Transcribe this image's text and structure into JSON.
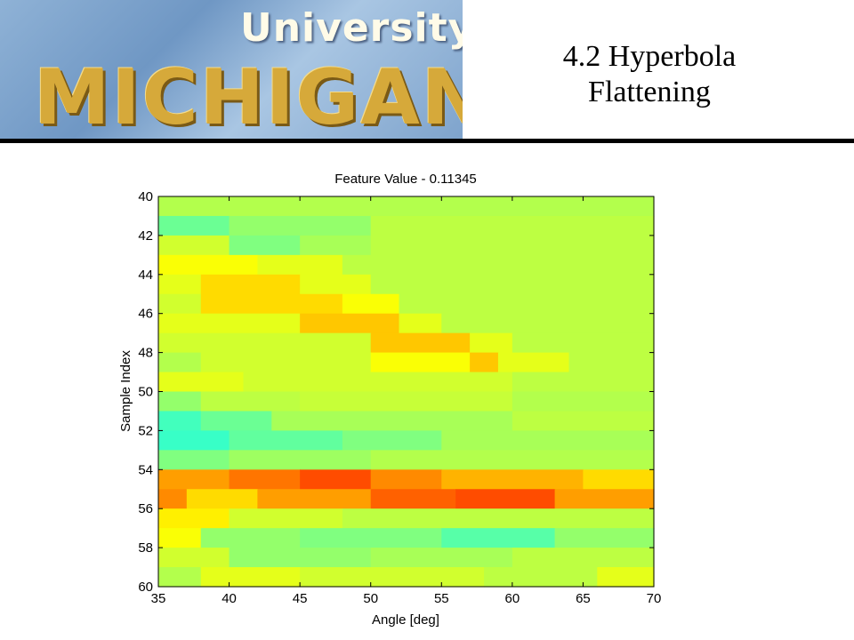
{
  "slide": {
    "logo_top": "University of",
    "logo_main": "MICHIGAN",
    "title_line1": "4.2 Hyperbola",
    "title_line2": "Flattening",
    "title_color": "#000000"
  },
  "chart_data": {
    "type": "heatmap",
    "title": "Feature Value - 0.11345",
    "xlabel": "Angle [deg]",
    "ylabel": "Sample Index",
    "xlim": [
      35,
      70
    ],
    "ylim": [
      40,
      60
    ],
    "y_inverted": true,
    "xticks": [
      35,
      40,
      45,
      50,
      55,
      60,
      65,
      70
    ],
    "yticks": [
      40,
      42,
      44,
      46,
      48,
      50,
      52,
      54,
      56,
      58,
      60
    ],
    "grid": false,
    "colormap": "jet",
    "colors": {
      "teal": "#66ffaa",
      "green": "#99ff66",
      "lime": "#ccff33",
      "yellow": "#ffff00",
      "gold": "#ffcc00",
      "orange": "#ff9900"
    },
    "rows": [
      {
        "y0": 40,
        "y1": 41,
        "segments": [
          {
            "x0": 35,
            "x1": 70,
            "v": 0.55
          }
        ]
      },
      {
        "y0": 41,
        "y1": 42,
        "segments": [
          {
            "x0": 35,
            "x1": 40,
            "v": 0.48
          },
          {
            "x0": 40,
            "x1": 50,
            "v": 0.52
          },
          {
            "x0": 50,
            "x1": 70,
            "v": 0.56
          }
        ]
      },
      {
        "y0": 42,
        "y1": 43,
        "segments": [
          {
            "x0": 35,
            "x1": 40,
            "v": 0.58
          },
          {
            "x0": 40,
            "x1": 45,
            "v": 0.5
          },
          {
            "x0": 45,
            "x1": 50,
            "v": 0.54
          },
          {
            "x0": 50,
            "x1": 70,
            "v": 0.56
          }
        ]
      },
      {
        "y0": 43,
        "y1": 44,
        "segments": [
          {
            "x0": 35,
            "x1": 42,
            "v": 0.62
          },
          {
            "x0": 42,
            "x1": 48,
            "v": 0.6
          },
          {
            "x0": 48,
            "x1": 70,
            "v": 0.56
          }
        ]
      },
      {
        "y0": 44,
        "y1": 45,
        "segments": [
          {
            "x0": 35,
            "x1": 38,
            "v": 0.6
          },
          {
            "x0": 38,
            "x1": 45,
            "v": 0.66
          },
          {
            "x0": 45,
            "x1": 50,
            "v": 0.6
          },
          {
            "x0": 50,
            "x1": 70,
            "v": 0.56
          }
        ]
      },
      {
        "y0": 45,
        "y1": 46,
        "segments": [
          {
            "x0": 35,
            "x1": 38,
            "v": 0.58
          },
          {
            "x0": 38,
            "x1": 48,
            "v": 0.66
          },
          {
            "x0": 48,
            "x1": 52,
            "v": 0.62
          },
          {
            "x0": 52,
            "x1": 70,
            "v": 0.56
          }
        ]
      },
      {
        "y0": 46,
        "y1": 47,
        "segments": [
          {
            "x0": 35,
            "x1": 45,
            "v": 0.6
          },
          {
            "x0": 45,
            "x1": 52,
            "v": 0.68
          },
          {
            "x0": 52,
            "x1": 55,
            "v": 0.6
          },
          {
            "x0": 55,
            "x1": 70,
            "v": 0.56
          }
        ]
      },
      {
        "y0": 47,
        "y1": 48,
        "segments": [
          {
            "x0": 35,
            "x1": 50,
            "v": 0.58
          },
          {
            "x0": 50,
            "x1": 57,
            "v": 0.68
          },
          {
            "x0": 57,
            "x1": 60,
            "v": 0.6
          },
          {
            "x0": 60,
            "x1": 70,
            "v": 0.56
          }
        ]
      },
      {
        "y0": 48,
        "y1": 49,
        "segments": [
          {
            "x0": 35,
            "x1": 38,
            "v": 0.55
          },
          {
            "x0": 38,
            "x1": 50,
            "v": 0.58
          },
          {
            "x0": 50,
            "x1": 57,
            "v": 0.62
          },
          {
            "x0": 57,
            "x1": 59,
            "v": 0.68
          },
          {
            "x0": 59,
            "x1": 64,
            "v": 0.6
          },
          {
            "x0": 64,
            "x1": 70,
            "v": 0.56
          }
        ]
      },
      {
        "y0": 49,
        "y1": 50,
        "segments": [
          {
            "x0": 35,
            "x1": 41,
            "v": 0.6
          },
          {
            "x0": 41,
            "x1": 60,
            "v": 0.58
          },
          {
            "x0": 60,
            "x1": 70,
            "v": 0.56
          }
        ]
      },
      {
        "y0": 50,
        "y1": 51,
        "segments": [
          {
            "x0": 35,
            "x1": 38,
            "v": 0.52
          },
          {
            "x0": 38,
            "x1": 45,
            "v": 0.56
          },
          {
            "x0": 45,
            "x1": 60,
            "v": 0.57
          },
          {
            "x0": 60,
            "x1": 70,
            "v": 0.55
          }
        ]
      },
      {
        "y0": 51,
        "y1": 52,
        "segments": [
          {
            "x0": 35,
            "x1": 38,
            "v": 0.44
          },
          {
            "x0": 38,
            "x1": 43,
            "v": 0.48
          },
          {
            "x0": 43,
            "x1": 60,
            "v": 0.54
          },
          {
            "x0": 60,
            "x1": 70,
            "v": 0.56
          }
        ]
      },
      {
        "y0": 52,
        "y1": 53,
        "segments": [
          {
            "x0": 35,
            "x1": 40,
            "v": 0.43
          },
          {
            "x0": 40,
            "x1": 48,
            "v": 0.47
          },
          {
            "x0": 48,
            "x1": 55,
            "v": 0.5
          },
          {
            "x0": 55,
            "x1": 70,
            "v": 0.54
          }
        ]
      },
      {
        "y0": 53,
        "y1": 54,
        "segments": [
          {
            "x0": 35,
            "x1": 40,
            "v": 0.5
          },
          {
            "x0": 40,
            "x1": 50,
            "v": 0.53
          },
          {
            "x0": 50,
            "x1": 70,
            "v": 0.55
          }
        ]
      },
      {
        "y0": 54,
        "y1": 55,
        "segments": [
          {
            "x0": 35,
            "x1": 40,
            "v": 0.72
          },
          {
            "x0": 40,
            "x1": 45,
            "v": 0.76
          },
          {
            "x0": 45,
            "x1": 50,
            "v": 0.8
          },
          {
            "x0": 50,
            "x1": 55,
            "v": 0.74
          },
          {
            "x0": 55,
            "x1": 65,
            "v": 0.7
          },
          {
            "x0": 65,
            "x1": 70,
            "v": 0.66
          }
        ]
      },
      {
        "y0": 55,
        "y1": 56,
        "segments": [
          {
            "x0": 35,
            "x1": 37,
            "v": 0.74
          },
          {
            "x0": 37,
            "x1": 42,
            "v": 0.66
          },
          {
            "x0": 42,
            "x1": 50,
            "v": 0.72
          },
          {
            "x0": 50,
            "x1": 56,
            "v": 0.78
          },
          {
            "x0": 56,
            "x1": 63,
            "v": 0.8
          },
          {
            "x0": 63,
            "x1": 70,
            "v": 0.72
          }
        ]
      },
      {
        "y0": 56,
        "y1": 57,
        "segments": [
          {
            "x0": 35,
            "x1": 40,
            "v": 0.64
          },
          {
            "x0": 40,
            "x1": 48,
            "v": 0.58
          },
          {
            "x0": 48,
            "x1": 70,
            "v": 0.56
          }
        ]
      },
      {
        "y0": 57,
        "y1": 58,
        "segments": [
          {
            "x0": 35,
            "x1": 38,
            "v": 0.62
          },
          {
            "x0": 38,
            "x1": 45,
            "v": 0.52
          },
          {
            "x0": 45,
            "x1": 55,
            "v": 0.5
          },
          {
            "x0": 55,
            "x1": 63,
            "v": 0.46
          },
          {
            "x0": 63,
            "x1": 70,
            "v": 0.52
          }
        ]
      },
      {
        "y0": 58,
        "y1": 59,
        "segments": [
          {
            "x0": 35,
            "x1": 40,
            "v": 0.58
          },
          {
            "x0": 40,
            "x1": 50,
            "v": 0.52
          },
          {
            "x0": 50,
            "x1": 60,
            "v": 0.54
          },
          {
            "x0": 60,
            "x1": 70,
            "v": 0.56
          }
        ]
      },
      {
        "y0": 59,
        "y1": 60,
        "segments": [
          {
            "x0": 35,
            "x1": 38,
            "v": 0.55
          },
          {
            "x0": 38,
            "x1": 45,
            "v": 0.6
          },
          {
            "x0": 45,
            "x1": 58,
            "v": 0.58
          },
          {
            "x0": 58,
            "x1": 66,
            "v": 0.56
          },
          {
            "x0": 66,
            "x1": 70,
            "v": 0.6
          }
        ]
      }
    ]
  }
}
